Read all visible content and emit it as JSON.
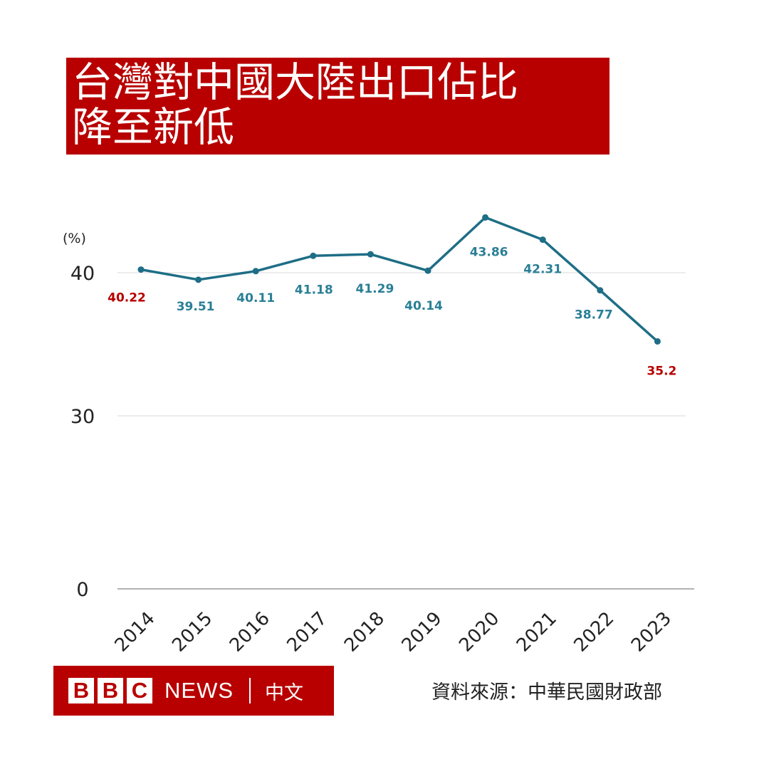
{
  "title": {
    "line1": "台灣對中國大陸出口佔比",
    "line2": "降至新低"
  },
  "source_text": "資料來源：中華民國財政部",
  "logo": {
    "letters": [
      "B",
      "B",
      "C"
    ],
    "news": "NEWS",
    "chinese": "中文"
  },
  "colors": {
    "accent": "#b80000",
    "line": "#1e6e86",
    "label_normal": "#2a7f96",
    "label_highlight": "#b80000"
  },
  "chart_data": {
    "type": "line",
    "ylabel": "(%)",
    "x": [
      "2014",
      "2015",
      "2016",
      "2017",
      "2018",
      "2019",
      "2020",
      "2021",
      "2022",
      "2023"
    ],
    "series": [
      {
        "values": [
          40.22,
          39.51,
          40.11,
          41.18,
          41.29,
          40.14,
          43.86,
          42.31,
          38.77,
          35.2
        ]
      }
    ],
    "data_labels": [
      "40.22",
      "39.51",
      "40.11",
      "41.18",
      "41.29",
      "40.14",
      "43.86",
      "42.31",
      "38.77",
      "35.2"
    ],
    "highlighted_points": [
      "2014",
      "2023"
    ],
    "yticks": [
      {
        "value": 0,
        "label": "0"
      },
      {
        "value": 30,
        "label": "30"
      },
      {
        "value": 40,
        "label": "40"
      }
    ],
    "axis_break": "between 0 and 30",
    "grid": true
  }
}
